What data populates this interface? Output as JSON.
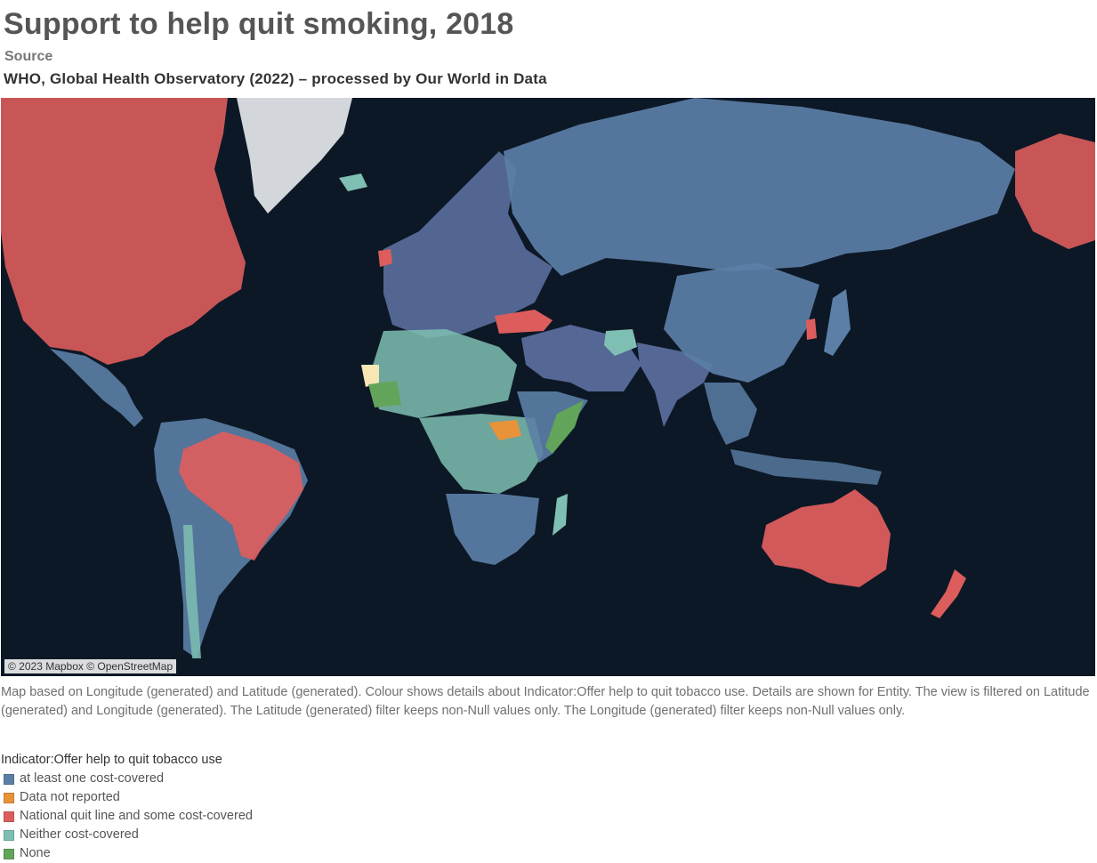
{
  "header": {
    "title": "Support to help quit smoking, 2018",
    "source_label": "Source",
    "source_text": "WHO, Global Health Observatory (2022) – processed by Our World in Data"
  },
  "map": {
    "attribution": "© 2023 Mapbox © OpenStreetMap",
    "background_color": "#0d1826",
    "land_color": "#2b3440"
  },
  "caption": "Map based on Longitude (generated) and Latitude (generated).  Colour shows details about Indicator:Offer help to quit tobacco use.  Details are shown for Entity. The view is filtered on Latitude (generated) and Longitude (generated). The Latitude (generated) filter keeps non-Null values only. The Longitude (generated) filter keeps non-Null values only.",
  "legend": {
    "title": "Indicator:Offer help to quit tobacco use",
    "items": [
      {
        "label": "at least one cost-covered",
        "color": "#5b7fa6"
      },
      {
        "label": "Data not reported",
        "color": "#e8923a"
      },
      {
        "label": "National quit line and some cost-covered",
        "color": "#dd5d5d"
      },
      {
        "label": "Neither cost-covered",
        "color": "#7fbfb3"
      },
      {
        "label": "None",
        "color": "#62a55a"
      }
    ]
  }
}
